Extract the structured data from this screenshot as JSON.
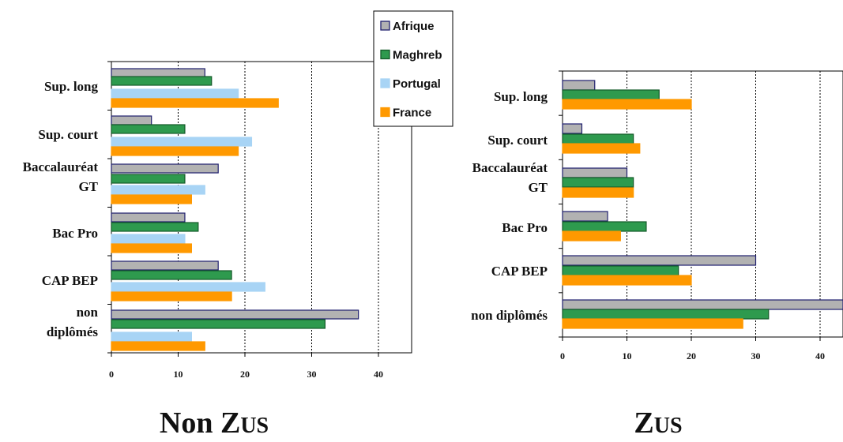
{
  "legend": {
    "items": [
      {
        "name": "Afrique",
        "color": "#B2B2B2",
        "stroke": "#1F1F6E"
      },
      {
        "name": "Maghreb",
        "color": "#2E9A4E",
        "stroke": "#155A2A"
      },
      {
        "name": "Portugal",
        "color": "#A8D4F5",
        "stroke": "#A8D4F5"
      },
      {
        "name": "France",
        "color": "#FF9900",
        "stroke": "#FF9900"
      }
    ]
  },
  "chart_data": [
    {
      "type": "bar",
      "orientation": "horizontal",
      "caption": {
        "first": "Non Z",
        "rest": "US"
      },
      "categories": [
        [
          "Sup. long"
        ],
        [
          "Sup. court"
        ],
        [
          "Baccalauréat",
          "GT"
        ],
        [
          "Bac Pro"
        ],
        [
          "CAP BEP"
        ],
        [
          "non",
          "diplômés"
        ]
      ],
      "series": [
        {
          "name": "Afrique",
          "values": [
            14,
            6,
            16,
            11,
            16,
            37
          ]
        },
        {
          "name": "Maghreb",
          "values": [
            15,
            11,
            11,
            13,
            18,
            32
          ]
        },
        {
          "name": "Portugal",
          "values": [
            19,
            21,
            14,
            11,
            23,
            12
          ]
        },
        {
          "name": "France",
          "values": [
            25,
            19,
            12,
            12,
            18,
            14
          ]
        }
      ],
      "xlim": [
        0,
        45
      ],
      "xticks": [
        "0",
        "10",
        "20",
        "30",
        "40"
      ],
      "grid": "vertical dashed"
    },
    {
      "type": "bar",
      "orientation": "horizontal",
      "caption": {
        "first": "Z",
        "rest": "US"
      },
      "categories": [
        [
          "Sup. long"
        ],
        [
          "Sup. court"
        ],
        [
          "Baccalauréat",
          "GT"
        ],
        [
          "Bac Pro"
        ],
        [
          "CAP BEP"
        ],
        [
          "non diplômés"
        ]
      ],
      "series": [
        {
          "name": "Afrique",
          "values": [
            5,
            3,
            10,
            7,
            30,
            44
          ]
        },
        {
          "name": "Maghreb",
          "values": [
            15,
            11,
            11,
            13,
            18,
            32
          ]
        },
        {
          "name": "France",
          "values": [
            20,
            12,
            11,
            9,
            20,
            28
          ]
        }
      ],
      "xlim": [
        0,
        44
      ],
      "xticks": [
        "0",
        "10",
        "20",
        "30",
        "40"
      ],
      "grid": "vertical dashed"
    }
  ]
}
